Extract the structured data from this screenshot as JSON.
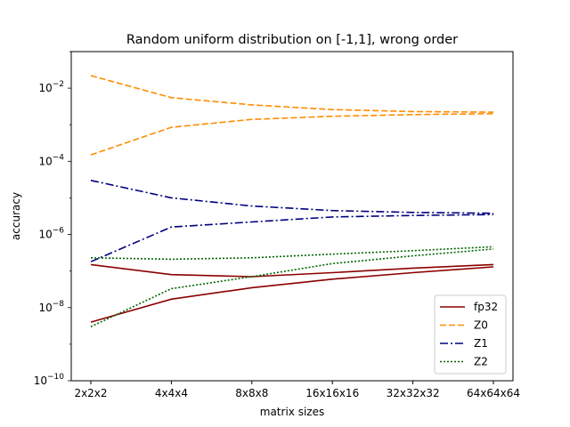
{
  "chart_data": {
    "type": "line",
    "title": "Random uniform distribution on [-1,1], wrong order",
    "xlabel": "matrix sizes",
    "ylabel": "accuracy",
    "yscale": "log",
    "ylim_exponent": [
      -10,
      -1
    ],
    "ytick_exponents": [
      -10,
      -8,
      -6,
      -4,
      -2
    ],
    "categories": [
      "2x2x2",
      "4x4x4",
      "8x8x8",
      "16x16x16",
      "32x32x32",
      "64x64x64"
    ],
    "legend_position": "lower-right",
    "grid": false,
    "series": [
      {
        "name": "fp32",
        "color": "#8b0000",
        "dash": "solid",
        "curve": "upper",
        "values": [
          1.5e-07,
          8e-08,
          7e-08,
          9e-08,
          1.2e-07,
          1.5e-07
        ]
      },
      {
        "name": "fp32",
        "color": "#8b0000",
        "dash": "solid",
        "curve": "lower",
        "values": [
          4e-09,
          1.7e-08,
          3.5e-08,
          6e-08,
          9e-08,
          1.3e-07
        ]
      },
      {
        "name": "Z0",
        "color": "#ff8c00",
        "dash": "dashed",
        "curve": "upper",
        "values": [
          0.022,
          0.0055,
          0.0035,
          0.0026,
          0.0023,
          0.0022
        ]
      },
      {
        "name": "Z0",
        "color": "#ff8c00",
        "dash": "dashed",
        "curve": "lower",
        "values": [
          0.00015,
          0.00085,
          0.0014,
          0.0017,
          0.0019,
          0.002
        ]
      },
      {
        "name": "Z1",
        "color": "#00007f",
        "dash": "dashdot",
        "curve": "upper",
        "values": [
          3e-05,
          1e-05,
          6e-06,
          4.5e-06,
          4e-06,
          3.8e-06
        ]
      },
      {
        "name": "Z1",
        "color": "#00007f",
        "dash": "dashdot",
        "curve": "lower",
        "values": [
          1.8e-07,
          1.6e-06,
          2.2e-06,
          3e-06,
          3.3e-06,
          3.5e-06
        ]
      },
      {
        "name": "Z2",
        "color": "#006400",
        "dash": "dotted",
        "curve": "upper",
        "values": [
          2.3e-07,
          2.1e-07,
          2.3e-07,
          2.9e-07,
          3.6e-07,
          4.6e-07
        ]
      },
      {
        "name": "Z2",
        "color": "#006400",
        "dash": "dotted",
        "curve": "lower",
        "values": [
          3e-09,
          3.3e-08,
          7e-08,
          1.6e-07,
          2.6e-07,
          4e-07
        ]
      }
    ],
    "legend": [
      {
        "label": "fp32",
        "color": "#8b0000",
        "dash": "solid"
      },
      {
        "label": "Z0",
        "color": "#ff8c00",
        "dash": "dashed"
      },
      {
        "label": "Z1",
        "color": "#00007f",
        "dash": "dashdot"
      },
      {
        "label": "Z2",
        "color": "#006400",
        "dash": "dotted"
      }
    ]
  }
}
